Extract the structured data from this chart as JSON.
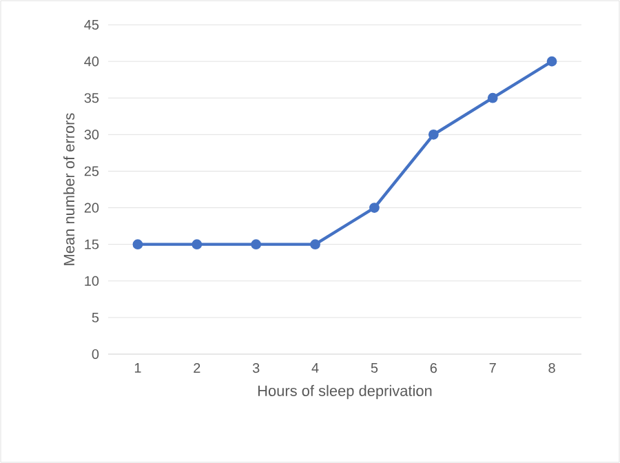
{
  "chart_data": {
    "type": "line",
    "xlabel": "Hours of sleep deprivation",
    "ylabel": "Mean number of errors",
    "categories": [
      "1",
      "2",
      "3",
      "4",
      "5",
      "6",
      "7",
      "8"
    ],
    "series": [
      {
        "color": "#4472c4",
        "values": [
          15,
          15,
          15,
          15,
          20,
          30,
          35,
          40
        ]
      }
    ],
    "ylim": [
      0,
      45
    ],
    "yticks": [
      0,
      5,
      10,
      15,
      20,
      25,
      30,
      35,
      40,
      45
    ],
    "grid": "y",
    "marker": "circle",
    "line_style": "solid"
  }
}
